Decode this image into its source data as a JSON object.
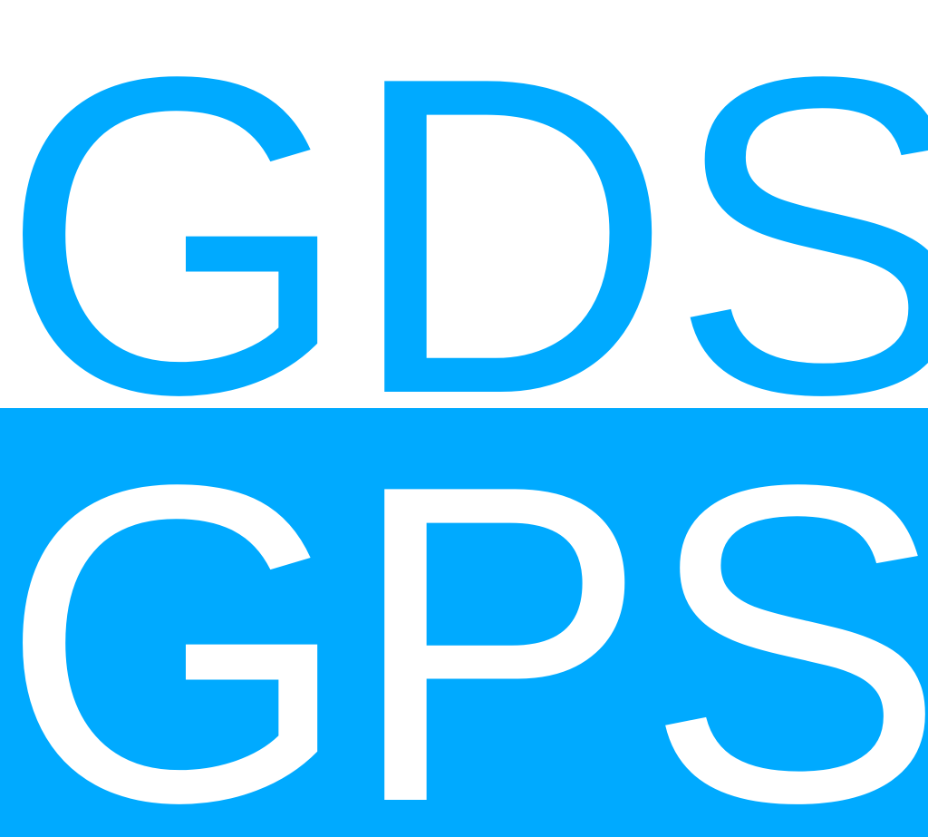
{
  "logo": {
    "top_text": "GDS",
    "bottom_text": "GPS"
  },
  "colors": {
    "brand_blue": "#00aaff",
    "white": "#ffffff"
  }
}
